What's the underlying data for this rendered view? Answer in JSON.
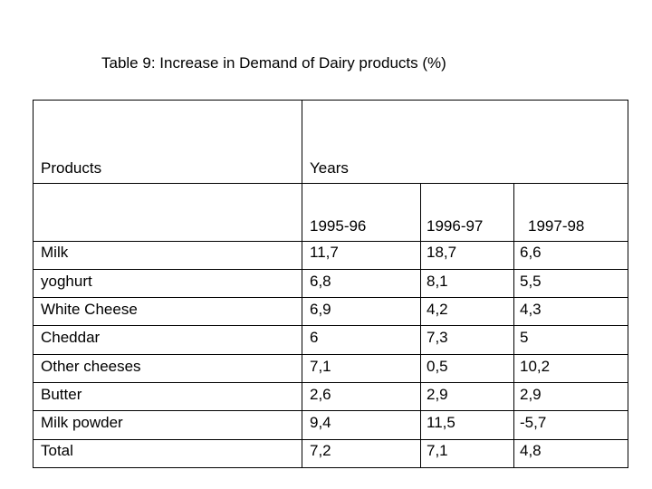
{
  "caption": "Table 9: Increase in Demand of Dairy products (%)",
  "table": {
    "header_products": "Products",
    "header_years": "Years",
    "year_columns": [
      "1995-96",
      "1996-97",
      "1997-98"
    ],
    "rows": [
      {
        "product": "Milk",
        "values": [
          "11,7",
          "18,7",
          "6,6"
        ]
      },
      {
        "product": "yoghurt",
        "values": [
          "6,8",
          "8,1",
          "5,5"
        ]
      },
      {
        "product": "White Cheese",
        "values": [
          "6,9",
          "4,2",
          "4,3"
        ]
      },
      {
        "product": "Cheddar",
        "values": [
          "6",
          "7,3",
          "5"
        ]
      },
      {
        "product": "Other cheeses",
        "values": [
          "7,1",
          "0,5",
          "10,2"
        ]
      },
      {
        "product": "Butter",
        "values": [
          "2,6",
          "2,9",
          "2,9"
        ]
      },
      {
        "product": "Milk powder",
        "values": [
          "9,4",
          "11,5",
          "-5,7"
        ]
      },
      {
        "product": "Total",
        "values": [
          "7,2",
          "7,1",
          "4,8"
        ]
      }
    ]
  }
}
